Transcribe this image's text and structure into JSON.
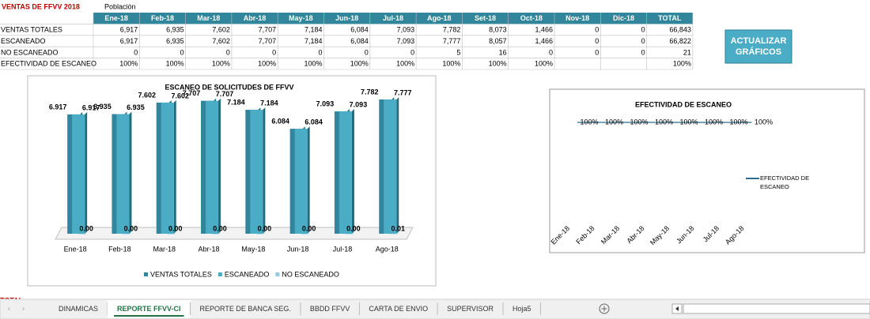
{
  "header": {
    "title": "VENTAS DE FFVV 2018",
    "subtitle": "Población"
  },
  "table": {
    "columns": [
      "Ene-18",
      "Feb-18",
      "Mar-18",
      "Abr-18",
      "May-18",
      "Jun-18",
      "Jul-18",
      "Ago-18",
      "Set-18",
      "Oct-18",
      "Nov-18",
      "Dic-18",
      "TOTAL"
    ],
    "rows": [
      {
        "label": "VENTAS TOTALES",
        "cells": [
          "6,917",
          "6,935",
          "7,602",
          "7,707",
          "7,184",
          "6,084",
          "7,093",
          "7,782",
          "8,073",
          "1,466",
          "0",
          "0",
          "66,843"
        ]
      },
      {
        "label": "ESCANEADO",
        "cells": [
          "6,917",
          "6,935",
          "7,602",
          "7,707",
          "7,184",
          "6,084",
          "7,093",
          "7,777",
          "8,057",
          "1,466",
          "0",
          "0",
          "66,822"
        ]
      },
      {
        "label": "NO ESCANEADO",
        "cells": [
          "0",
          "0",
          "0",
          "0",
          "0",
          "0",
          "0",
          "5",
          "16",
          "0",
          "0",
          "0",
          "21"
        ]
      },
      {
        "label": "EFECTIVIDAD DE ESCANEO",
        "cells": [
          "100%",
          "100%",
          "100%",
          "100%",
          "100%",
          "100%",
          "100%",
          "100%",
          "100%",
          "100%",
          null,
          null,
          "100%"
        ]
      }
    ]
  },
  "button": {
    "label": "ACTUALIZAR GRÁFICOS"
  },
  "chart_data": [
    {
      "type": "bar3d",
      "title": "ESCANEO DE SOLICITUDES DE FFVV",
      "categories": [
        "Ene-18",
        "Feb-18",
        "Mar-18",
        "Abr-18",
        "May-18",
        "Jun-18",
        "Jul-18",
        "Ago-18"
      ],
      "series": [
        {
          "name": "VENTAS TOTALES",
          "color": "#31859c",
          "values": [
            6.917,
            6.935,
            7.602,
            7.707,
            7.184,
            6.084,
            7.093,
            7.782
          ]
        },
        {
          "name": "ESCANEADO",
          "color": "#4bacc6",
          "values": [
            6.917,
            6.935,
            7.602,
            7.707,
            7.184,
            6.084,
            7.093,
            7.777
          ]
        },
        {
          "name": "NO ESCANEADO",
          "color": "#93cddd",
          "values": [
            0,
            0,
            0,
            0,
            0,
            0,
            0,
            0.005
          ],
          "value_labels": [
            "0.00",
            "0.00",
            "0.00",
            "0.00",
            "0.00",
            "0.00",
            "0.00",
            "0.01"
          ]
        }
      ]
    },
    {
      "type": "line",
      "title": "EFECTIVIDAD DE ESCANEO",
      "categories": [
        "Ene-18",
        "Feb-18",
        "Mar-18",
        "Abr-18",
        "May-18",
        "Jun-18",
        "Jul-18",
        "Ago-18"
      ],
      "series": [
        {
          "name": "EFECTIVIDAD DE ESCANEO",
          "color": "#2e6e8e",
          "values": [
            100,
            100,
            100,
            100,
            100,
            100,
            100,
            100
          ],
          "value_labels": [
            "100%",
            "100%",
            "100%",
            "100%",
            "100%",
            "100%",
            "100%",
            "100%"
          ]
        }
      ]
    }
  ],
  "footer_label": "TOTAL",
  "tabs": {
    "items": [
      "DINAMICAS",
      "REPORTE FFVV-CI",
      "REPORTE DE BANCA SEG.",
      "BBDD FFVV",
      "CARTA DE ENVIO",
      "SUPERVISOR",
      "Hoja5"
    ],
    "active": 1
  }
}
